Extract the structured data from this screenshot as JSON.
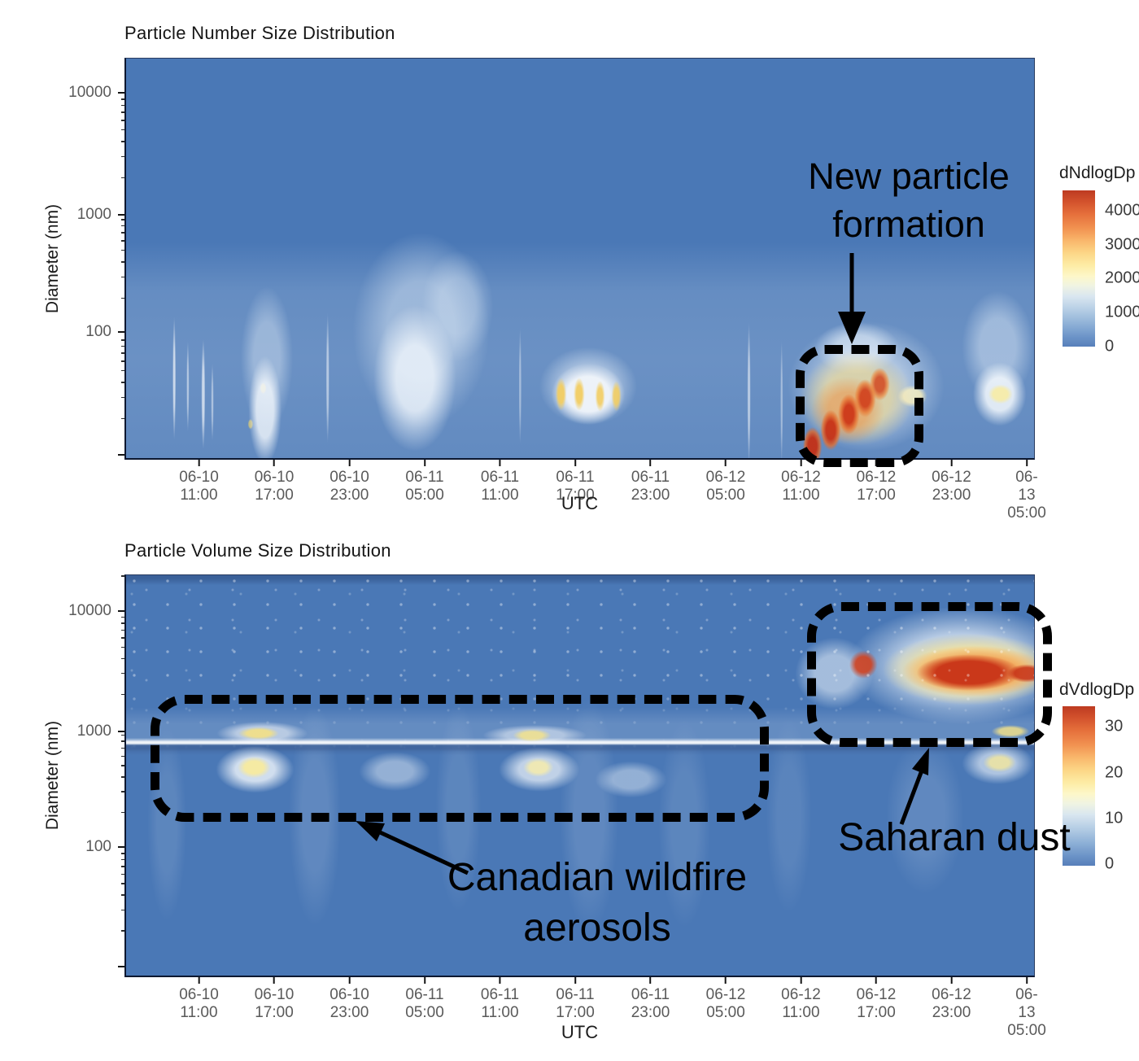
{
  "figure": {
    "description": "Two stacked time–size heatmaps of aerosol measurements, 06-10 to 06-13 UTC"
  },
  "charts": [
    {
      "title": "Particle Number Size Distribution",
      "y_label": "Diameter (nm)",
      "x_label": "UTC",
      "y_ticks": [
        "10000",
        "1000",
        "100"
      ],
      "x_ticks": [
        {
          "date": "06-10",
          "time": "11:00"
        },
        {
          "date": "06-10",
          "time": "17:00"
        },
        {
          "date": "06-10",
          "time": "23:00"
        },
        {
          "date": "06-11",
          "time": "05:00"
        },
        {
          "date": "06-11",
          "time": "11:00"
        },
        {
          "date": "06-11",
          "time": "17:00"
        },
        {
          "date": "06-11",
          "time": "23:00"
        },
        {
          "date": "06-12",
          "time": "05:00"
        },
        {
          "date": "06-12",
          "time": "11:00"
        },
        {
          "date": "06-12",
          "time": "17:00"
        },
        {
          "date": "06-12",
          "time": "23:00"
        },
        {
          "date": "06-13",
          "time": "05:00"
        }
      ],
      "colorbar": {
        "title": "dNdlogDp",
        "ticks": [
          "4000",
          "3000",
          "2000",
          "1000",
          "0"
        ]
      }
    },
    {
      "title": "Particle Volume Size Distribution",
      "y_label": "Diameter (nm)",
      "x_label": "UTC",
      "y_ticks": [
        "10000",
        "1000",
        "100"
      ],
      "x_ticks": [
        {
          "date": "06-10",
          "time": "11:00"
        },
        {
          "date": "06-10",
          "time": "17:00"
        },
        {
          "date": "06-10",
          "time": "23:00"
        },
        {
          "date": "06-11",
          "time": "05:00"
        },
        {
          "date": "06-11",
          "time": "11:00"
        },
        {
          "date": "06-11",
          "time": "17:00"
        },
        {
          "date": "06-11",
          "time": "23:00"
        },
        {
          "date": "06-12",
          "time": "05:00"
        },
        {
          "date": "06-12",
          "time": "11:00"
        },
        {
          "date": "06-12",
          "time": "17:00"
        },
        {
          "date": "06-12",
          "time": "23:00"
        },
        {
          "date": "06-13",
          "time": "05:00"
        }
      ],
      "colorbar": {
        "title": "dVdlogDp",
        "ticks": [
          "30",
          "20",
          "10",
          "0"
        ]
      }
    }
  ],
  "annotations": {
    "new_particle_formation": {
      "line1": "New particle",
      "line2": "formation"
    },
    "canadian_wildfire": {
      "line1": "Canadian wildfire",
      "line2": "aerosols"
    },
    "saharan_dust": {
      "text": "Saharan dust"
    }
  },
  "chart_data": [
    {
      "type": "heatmap",
      "title": "Particle Number Size Distribution",
      "xlabel": "UTC",
      "ylabel": "Diameter (nm)",
      "x_tick_labels": [
        "06-10 11:00",
        "06-10 17:00",
        "06-10 23:00",
        "06-11 05:00",
        "06-11 11:00",
        "06-11 17:00",
        "06-11 23:00",
        "06-12 05:00",
        "06-12 11:00",
        "06-12 17:00",
        "06-12 23:00",
        "06-13 05:00"
      ],
      "y_axis": {
        "scale": "log",
        "min": 9,
        "max": 19600,
        "tick_values": [
          10000,
          1000,
          100
        ]
      },
      "colorbar": {
        "title": "dNdlogDp",
        "tick_values": [
          4000,
          3000,
          2000,
          1000,
          0
        ],
        "colormap": "RdYlBu reversed (blue=0, red>=4000)"
      },
      "background_value": "0–500 (blue)",
      "features": [
        {
          "name": "new particle formation burst",
          "time": "06-12 12:00 to 06-12 18:00",
          "diameter_nm": "10-80, growing diagonally with time",
          "value": "~4000+ (red core, orange/yellow/white halo)"
        },
        {
          "name": "midday ultrafine bursts",
          "time": "06-11 15:00 to 06-11 19:00",
          "diameter_nm": "20-45",
          "value": "~2500-3000 (4 yellow streaks with white halo)"
        },
        {
          "name": "broad aerosol column",
          "time": "06-10 17:00 to 06-10 23:00",
          "diameter_nm": "10-400",
          "value": "~1200-2000 (bright white plume)"
        },
        {
          "name": "narrow streaks",
          "time": "06-10 08:00 to 06-10 14:00",
          "diameter_nm": "20-200",
          "value": "~800-1500 (thin white vertical lines)"
        },
        {
          "name": "late event",
          "time": "06-13 00:00 to 06-13 05:00",
          "diameter_nm": "20-60",
          "value": "~2000-2500 (pale yellow core in white column)"
        }
      ]
    },
    {
      "type": "heatmap",
      "title": "Particle Volume Size Distribution",
      "xlabel": "UTC",
      "ylabel": "Diameter (nm)",
      "x_tick_labels": [
        "06-10 11:00",
        "06-10 17:00",
        "06-10 23:00",
        "06-11 05:00",
        "06-11 11:00",
        "06-11 17:00",
        "06-11 23:00",
        "06-12 05:00",
        "06-12 11:00",
        "06-12 17:00",
        "06-12 23:00",
        "06-13 05:00"
      ],
      "y_axis": {
        "scale": "log",
        "min": 8,
        "max": 20400,
        "tick_values": [
          10000,
          1000,
          100
        ]
      },
      "colorbar": {
        "title": "dVdlogDp",
        "tick_values": [
          30,
          20,
          10,
          0
        ],
        "colormap": "RdYlBu reversed (blue=0, red>=30)"
      },
      "background_value": "0-5 (blue)",
      "features": [
        {
          "name": "Saharan dust plume",
          "time": "06-12 12:00 to 06-13 05:00 (to right edge)",
          "diameter_nm": "1000-10000, core ~2000-5000",
          "value": "~30+ (red cores at 06-12 17:00-23:00, yellow/white halo)"
        },
        {
          "name": "Canadian wildfire aerosols band",
          "time": "06-10 08:00 to 06-12 10:00",
          "diameter_nm": "200-2000",
          "value": "~10-20 (white band with yellow blobs at 06-10 17:00, 06-11 17:00)"
        },
        {
          "name": "thin bright seam line",
          "time": "entire record",
          "diameter_nm": "~900",
          "value": "~10 (white line with dark blue shadow below)"
        },
        {
          "name": "speckle noise",
          "time": "entire record",
          "diameter_nm": ">2000",
          "value": "scattered white pixels"
        }
      ]
    }
  ]
}
